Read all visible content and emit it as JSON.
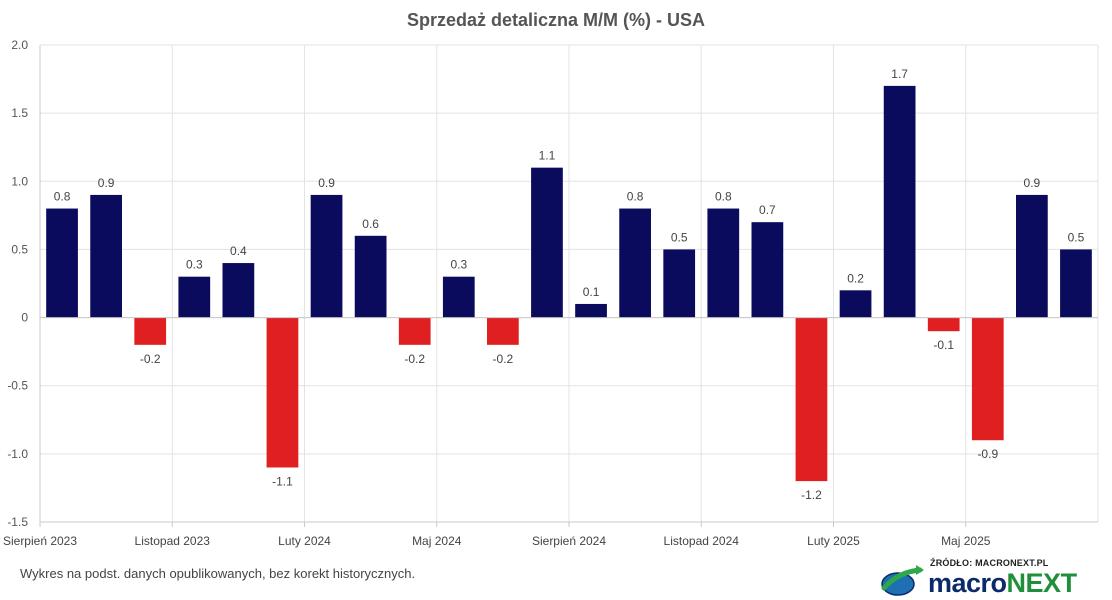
{
  "chart_data": {
    "type": "bar",
    "title": "Sprzedaż detaliczna M/M (%) - USA",
    "xlabel": "",
    "ylabel": "",
    "ylim": [
      -1.5,
      2.0
    ],
    "yticks": [
      "2.0",
      "1.5",
      "1.0",
      "0.5",
      "0",
      "-0.5",
      "-1.0",
      "-1.5"
    ],
    "ytick_values": [
      2.0,
      1.5,
      1.0,
      0.5,
      0,
      -0.5,
      -1.0,
      -1.5
    ],
    "xtick_labels": [
      {
        "label": "Sierpień 2023",
        "index": 0
      },
      {
        "label": "Listopad 2023",
        "index": 3
      },
      {
        "label": "Luty 2024",
        "index": 6
      },
      {
        "label": "Maj 2024",
        "index": 9
      },
      {
        "label": "Sierpień 2024",
        "index": 12
      },
      {
        "label": "Listopad 2024",
        "index": 15
      },
      {
        "label": "Luty 2025",
        "index": 18
      },
      {
        "label": "Maj 2025",
        "index": 21
      }
    ],
    "values": [
      0.8,
      0.9,
      -0.2,
      0.3,
      0.4,
      -1.1,
      0.9,
      0.6,
      -0.2,
      0.3,
      -0.2,
      1.1,
      0.1,
      0.8,
      0.5,
      0.8,
      0.7,
      -1.2,
      0.2,
      1.7,
      -0.1,
      -0.9,
      0.9,
      0.5
    ],
    "value_labels": [
      "0.8",
      "0.9",
      "-0.2",
      "0.3",
      "0.4",
      "-1.1",
      "0.9",
      "0.6",
      "-0.2",
      "0.3",
      "-0.2",
      "1.1",
      "0.1",
      "0.8",
      "0.5",
      "0.8",
      "0.7",
      "-1.2",
      "0.2",
      "1.7",
      "-0.1",
      "-0.9",
      "0.9",
      "0.5"
    ],
    "grid": true,
    "legend": "none",
    "colors": {
      "positive": "#0b0b5e",
      "negative": "#e02020",
      "grid": "#e3e3e3",
      "axis": "#c8c8c8"
    }
  },
  "footnote": "Wykres na podst. danych opublikowanych, bez korekt historycznych.",
  "brand": {
    "source": "ŹRÓDŁO: MACRONEXT.PL",
    "name_part1": "macro",
    "name_part2": "NEXT",
    "logo_icon": "globe-arrow-icon"
  }
}
